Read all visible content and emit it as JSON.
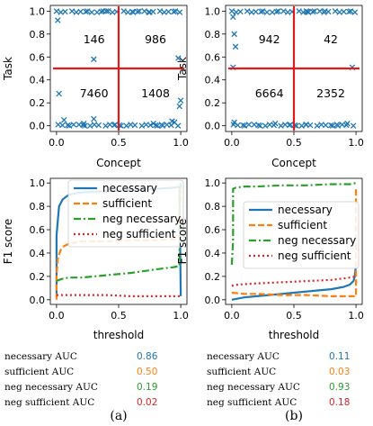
{
  "colors": {
    "necessary": "#1f77b4",
    "sufficient": "#ff7f0e",
    "neg_necessary": "#2ca02c",
    "neg_sufficient": "#d62728",
    "marker": "#1f77b4",
    "divider": "#e31a1c"
  },
  "chart_data": [
    {
      "id": "a_scatter",
      "type": "scatter",
      "xlabel": "Concept",
      "ylabel": "Task",
      "xlim": [
        -0.05,
        1.05
      ],
      "ylim": [
        -0.05,
        1.05
      ],
      "xticks": [
        "0.0",
        "0.5",
        "1.0"
      ],
      "yticks": [
        "0.0",
        "0.2",
        "0.4",
        "0.6",
        "0.8",
        "1.0"
      ],
      "divider": {
        "x": 0.5,
        "y": 0.5
      },
      "quadrant_counts": {
        "top_left": "146",
        "top_right": "986",
        "bottom_left": "7460",
        "bottom_right": "1408"
      },
      "points": [
        [
          0.01,
          0.92
        ],
        [
          0.02,
          0.28
        ],
        [
          0.3,
          0.58
        ],
        [
          0.98,
          0.59
        ],
        [
          0.99,
          0.17
        ],
        [
          1.0,
          0.22
        ],
        [
          0.06,
          0.05
        ],
        [
          0.93,
          0.04
        ],
        [
          0.95,
          0.03
        ],
        [
          0.3,
          0.06
        ],
        [
          0.75,
          0.99
        ],
        [
          0.4,
          1.0
        ],
        [
          0.22,
          0.02
        ],
        [
          0.78,
          0.02
        ]
      ]
    },
    {
      "id": "b_scatter",
      "type": "scatter",
      "xlabel": "Concept",
      "ylabel": "Task",
      "xlim": [
        -0.05,
        1.05
      ],
      "ylim": [
        -0.05,
        1.05
      ],
      "xticks": [
        "0.0",
        "0.5",
        "1.0"
      ],
      "yticks": [
        "0.0",
        "0.2",
        "0.4",
        "0.6",
        "0.8",
        "1.0"
      ],
      "divider": {
        "x": 0.5,
        "y": 0.5
      },
      "quadrant_counts": {
        "top_left": "942",
        "top_right": "42",
        "bottom_left": "6664",
        "bottom_right": "2352"
      },
      "points": [
        [
          0.01,
          0.95
        ],
        [
          0.02,
          0.8
        ],
        [
          0.03,
          0.69
        ],
        [
          0.01,
          0.51
        ],
        [
          0.02,
          0.03
        ],
        [
          0.35,
          0.02
        ],
        [
          0.6,
          0.01
        ],
        [
          0.97,
          0.51
        ],
        [
          0.93,
          0.02
        ],
        [
          0.6,
          1.0
        ],
        [
          0.75,
          1.0
        ]
      ]
    },
    {
      "id": "a_f1",
      "type": "line",
      "xlabel": "threshold",
      "ylabel": "F1 score",
      "xlim": [
        -0.05,
        1.05
      ],
      "ylim": [
        -0.04,
        1.04
      ],
      "xticks": [
        "0.0",
        "0.5",
        "1.0"
      ],
      "yticks": [
        "0.0",
        "0.2",
        "0.4",
        "0.6",
        "0.8",
        "1.0"
      ],
      "legend_position": "top-right",
      "series": [
        {
          "name": "necessary",
          "style": "solid",
          "x": [
            0.0,
            0.0,
            0.02,
            0.05,
            0.1,
            0.2,
            0.4,
            0.6,
            0.8,
            0.95,
            0.99,
            1.0
          ],
          "y": [
            0.05,
            0.55,
            0.8,
            0.86,
            0.9,
            0.92,
            0.93,
            0.94,
            0.95,
            0.96,
            0.97,
            0.03
          ]
        },
        {
          "name": "sufficient",
          "style": "dashed",
          "x": [
            0.0,
            0.0,
            0.01,
            0.03,
            0.06,
            0.1,
            0.2,
            0.4,
            0.6,
            0.8,
            0.95,
            0.99,
            1.0
          ],
          "y": [
            0.0,
            0.2,
            0.35,
            0.42,
            0.46,
            0.48,
            0.5,
            0.5,
            0.51,
            0.51,
            0.52,
            0.53,
            0.99
          ]
        },
        {
          "name": "neg necessary",
          "style": "dashdot",
          "x": [
            0.0,
            0.02,
            0.05,
            0.1,
            0.2,
            0.4,
            0.6,
            0.8,
            0.95,
            0.99,
            0.99,
            1.0
          ],
          "y": [
            0.16,
            0.17,
            0.18,
            0.19,
            0.19,
            0.21,
            0.23,
            0.26,
            0.28,
            0.29,
            0.9,
            1.0
          ]
        },
        {
          "name": "neg sufficient",
          "style": "dotted",
          "x": [
            0.0,
            0.2,
            0.4,
            0.6,
            0.8,
            0.95,
            1.0
          ],
          "y": [
            0.04,
            0.04,
            0.04,
            0.03,
            0.03,
            0.03,
            0.03
          ]
        }
      ]
    },
    {
      "id": "b_f1",
      "type": "line",
      "xlabel": "threshold",
      "ylabel": "F1 score",
      "xlim": [
        -0.05,
        1.05
      ],
      "ylim": [
        -0.04,
        1.04
      ],
      "xticks": [
        "0.0",
        "0.5",
        "1.0"
      ],
      "yticks": [
        "0.0",
        "0.2",
        "0.4",
        "0.6",
        "0.8",
        "1.0"
      ],
      "legend_position": "center-right",
      "series": [
        {
          "name": "necessary",
          "style": "solid",
          "x": [
            0.0,
            0.1,
            0.2,
            0.3,
            0.4,
            0.5,
            0.6,
            0.7,
            0.8,
            0.9,
            0.95,
            0.98,
            0.99,
            1.0
          ],
          "y": [
            0.0,
            0.02,
            0.03,
            0.04,
            0.05,
            0.06,
            0.07,
            0.08,
            0.09,
            0.11,
            0.13,
            0.16,
            0.2,
            0.3
          ]
        },
        {
          "name": "sufficient",
          "style": "dashed",
          "x": [
            0.0,
            0.1,
            0.2,
            0.4,
            0.6,
            0.8,
            0.95,
            0.99,
            1.0,
            1.0
          ],
          "y": [
            0.06,
            0.05,
            0.05,
            0.04,
            0.04,
            0.03,
            0.03,
            0.03,
            0.03,
            0.96
          ]
        },
        {
          "name": "neg necessary",
          "style": "dashdot",
          "x": [
            0.0,
            0.01,
            0.01,
            0.03,
            0.1,
            0.2,
            0.4,
            0.6,
            0.8,
            0.95,
            1.0
          ],
          "y": [
            0.3,
            0.5,
            0.95,
            0.96,
            0.97,
            0.97,
            0.98,
            0.98,
            0.99,
            0.99,
            1.0
          ]
        },
        {
          "name": "neg sufficient",
          "style": "dotted",
          "x": [
            0.0,
            0.05,
            0.2,
            0.4,
            0.6,
            0.8,
            0.95,
            1.0
          ],
          "y": [
            0.12,
            0.13,
            0.14,
            0.15,
            0.16,
            0.17,
            0.19,
            0.2
          ]
        }
      ]
    }
  ],
  "auc_tables": [
    {
      "rows": [
        {
          "label": "necessary AUC",
          "value": "0.86",
          "series": "necessary"
        },
        {
          "label": "sufficient AUC",
          "value": "0.50",
          "series": "sufficient"
        },
        {
          "label": "neg necessary AUC",
          "value": "0.19",
          "series": "neg_necessary"
        },
        {
          "label": "neg sufficient AUC",
          "value": "0.02",
          "series": "neg_sufficient"
        }
      ]
    },
    {
      "rows": [
        {
          "label": "necessary AUC",
          "value": "0.11",
          "series": "necessary"
        },
        {
          "label": "sufficient AUC",
          "value": "0.03",
          "series": "sufficient"
        },
        {
          "label": "neg necessary AUC",
          "value": "0.93",
          "series": "neg_necessary"
        },
        {
          "label": "neg sufficient AUC",
          "value": "0.18",
          "series": "neg_sufficient"
        }
      ]
    }
  ],
  "captions": [
    "(a)",
    "(b)"
  ]
}
